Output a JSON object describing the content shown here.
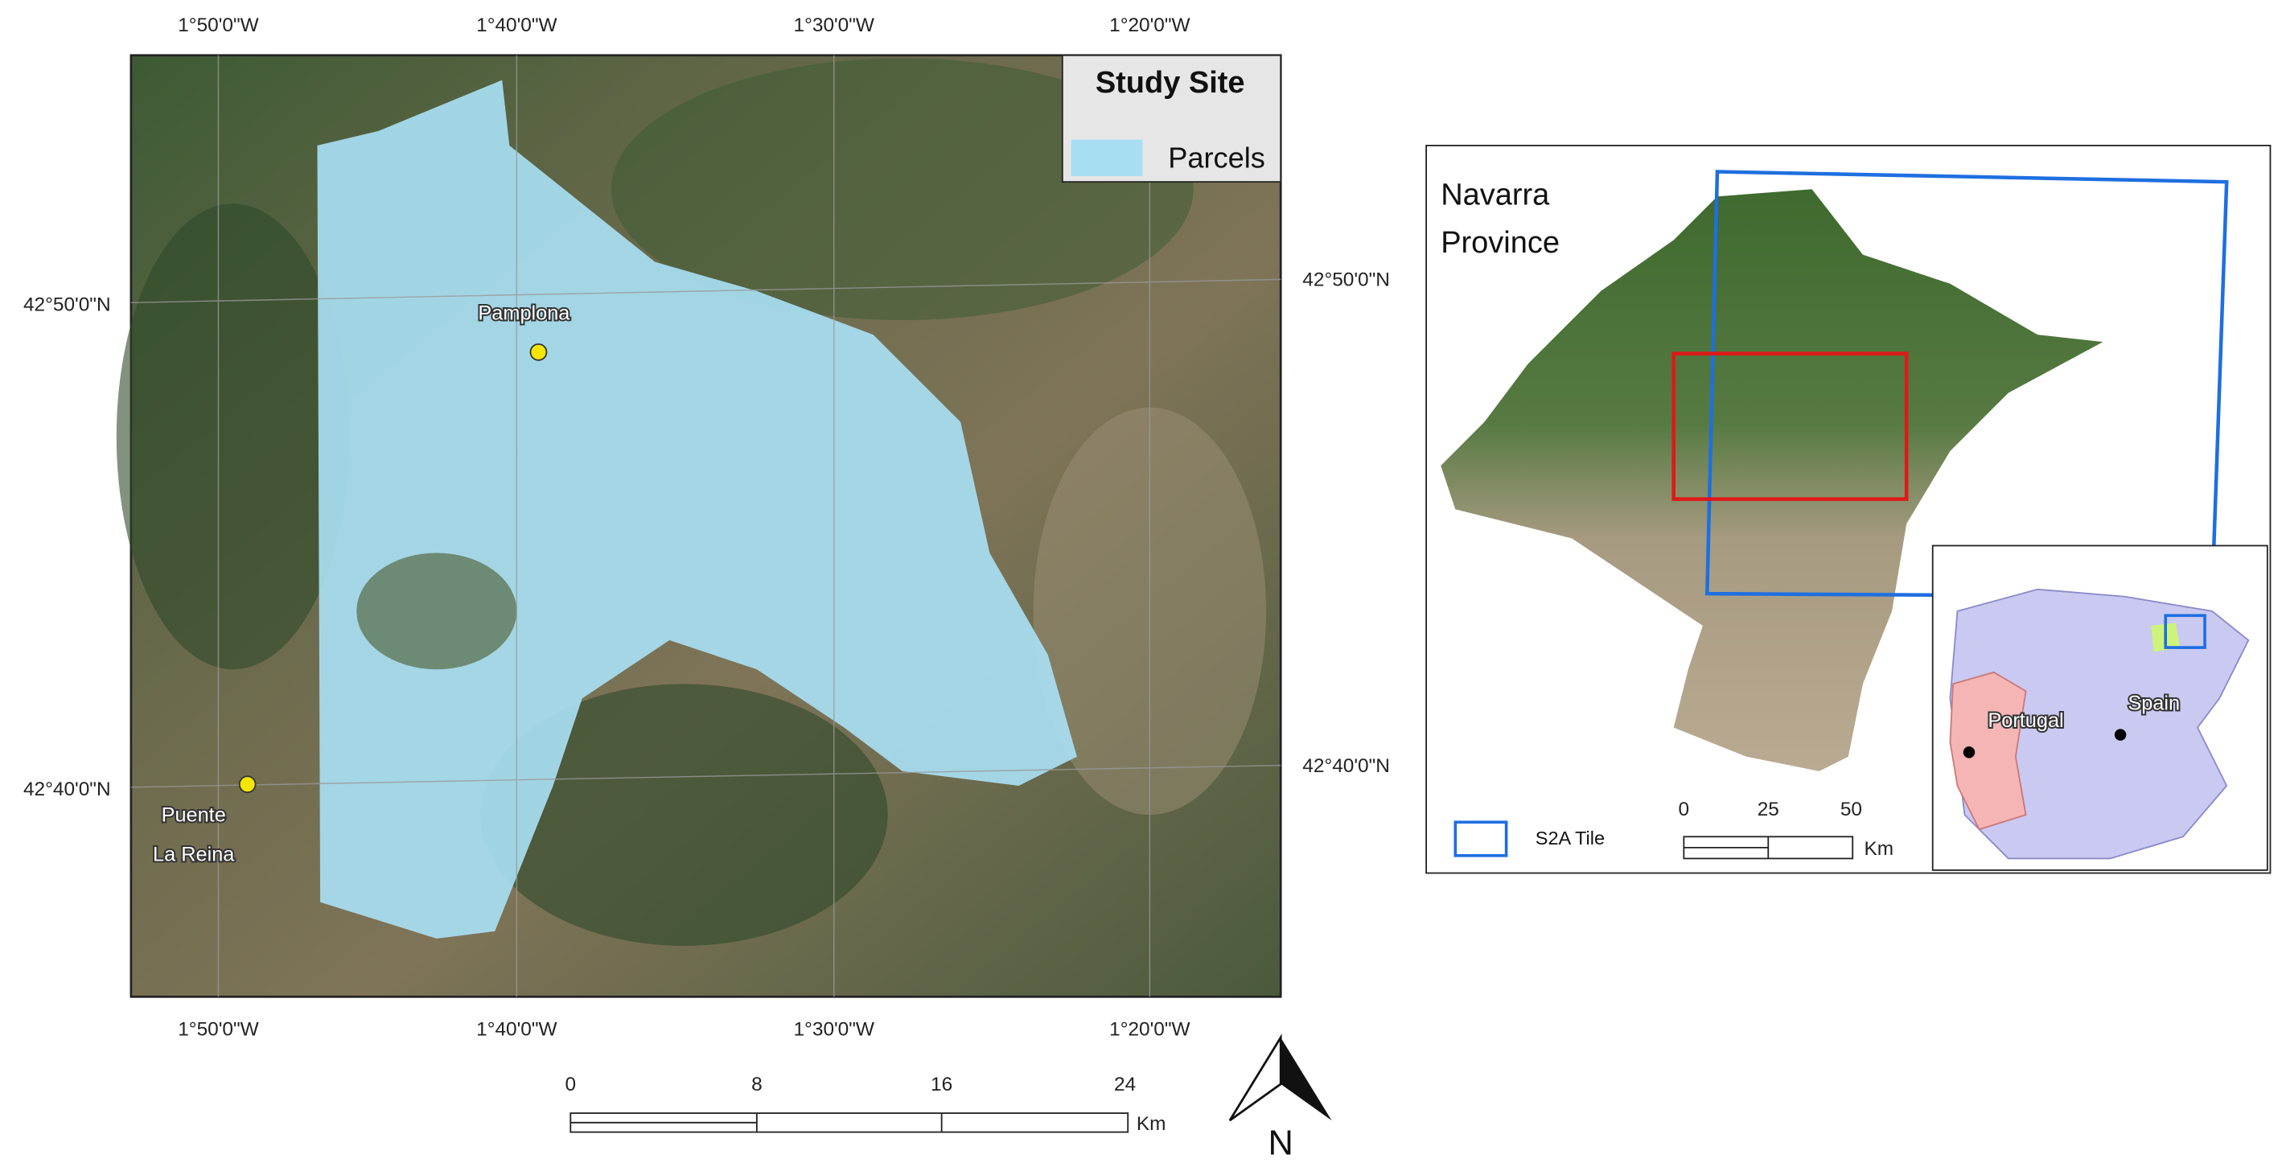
{
  "main_map": {
    "graticule_top": [
      "1°50'0\"W",
      "1°40'0\"W",
      "1°30'0\"W",
      "1°20'0\"W"
    ],
    "graticule_bottom": [
      "1°50'0\"W",
      "1°40'0\"W",
      "1°30'0\"W",
      "1°20'0\"W"
    ],
    "graticule_left": [
      "42°50'0\"N",
      "42°40'0\"N"
    ],
    "graticule_right": [
      "42°50'0\"N",
      "42°40'0\"N"
    ],
    "legend": {
      "title": "Study Site",
      "items": [
        "Parcels"
      ]
    },
    "places": {
      "pamplona": "Pamplona",
      "puente_la_reina": [
        "Puente",
        "La Reina"
      ]
    },
    "scale_bar": {
      "labels": [
        "0",
        "8",
        "16",
        "24"
      ],
      "unit": "Km"
    },
    "north_arrow": "N"
  },
  "inset_map": {
    "title": [
      "Navarra",
      "Province"
    ],
    "legend": "S2A Tile",
    "scale_bar": {
      "labels": [
        "0",
        "25",
        "50"
      ],
      "unit": "Km"
    },
    "countries": [
      "Portugal",
      "Spain"
    ]
  }
}
